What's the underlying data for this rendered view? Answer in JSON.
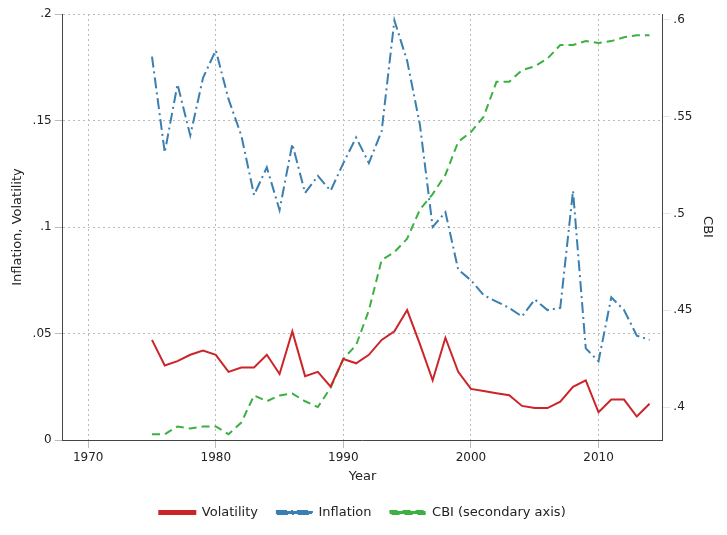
{
  "chart_data": {
    "type": "line",
    "x_label": "Year",
    "y_label": "Inflation, Volatility",
    "y2_label": "CBI",
    "x": [
      1975,
      1976,
      1977,
      1978,
      1979,
      1980,
      1981,
      1982,
      1983,
      1984,
      1985,
      1986,
      1987,
      1988,
      1989,
      1990,
      1991,
      1992,
      1993,
      1994,
      1995,
      1996,
      1997,
      1998,
      1999,
      2000,
      2001,
      2002,
      2003,
      2004,
      2005,
      2006,
      2007,
      2008,
      2009,
      2010,
      2011,
      2012,
      2013,
      2014
    ],
    "xlim": [
      1968,
      2015
    ],
    "xticks": [
      1970,
      1980,
      1990,
      2000,
      2010
    ],
    "ylim": [
      0,
      0.2
    ],
    "yticks": [
      0,
      {
        "value": 0.05,
        "label": ".05"
      },
      {
        "value": 0.1,
        "label": ".1"
      },
      {
        "value": 0.15,
        "label": ".15"
      },
      {
        "value": 0.2,
        "label": ".2"
      }
    ],
    "y2lim": [
      0.383,
      0.603
    ],
    "y2ticks": [
      {
        "value": 0.4,
        "label": ".4"
      },
      {
        "value": 0.45,
        "label": ".45"
      },
      {
        "value": 0.5,
        "label": ".5"
      },
      {
        "value": 0.55,
        "label": ".55"
      },
      {
        "value": 0.6,
        "label": ".6"
      }
    ],
    "grid": true,
    "legend": "bottom",
    "series": [
      {
        "name": "Volatility",
        "color": "#cc2529",
        "line_style": "solid",
        "values": [
          0.047,
          0.035,
          0.037,
          0.04,
          0.042,
          0.04,
          0.032,
          0.034,
          0.034,
          0.04,
          0.031,
          0.051,
          0.03,
          0.032,
          0.025,
          0.038,
          0.036,
          0.04,
          0.047,
          0.051,
          0.061,
          0.045,
          0.028,
          0.048,
          0.032,
          0.024,
          0.023,
          0.022,
          0.021,
          0.016,
          0.015,
          0.015,
          0.018,
          0.025,
          0.028,
          0.013,
          0.019,
          0.019,
          0.011,
          0.017
        ]
      },
      {
        "name": "Inflation",
        "color": "#3a7fb0",
        "line_style": "dashdot",
        "values": [
          0.18,
          0.135,
          0.167,
          0.143,
          0.17,
          0.183,
          0.16,
          0.143,
          0.115,
          0.128,
          0.108,
          0.139,
          0.116,
          0.124,
          0.117,
          0.13,
          0.142,
          0.13,
          0.145,
          0.197,
          0.178,
          0.148,
          0.1,
          0.107,
          0.08,
          0.075,
          0.068,
          0.065,
          0.062,
          0.058,
          0.066,
          0.061,
          0.062,
          0.117,
          0.043,
          0.037,
          0.067,
          0.061,
          0.049,
          0.047
        ]
      },
      {
        "name": "CBI (secondary axis)",
        "color": "#3cb043",
        "line_style": "dashed",
        "axis": "y2",
        "values": [
          0.386,
          0.386,
          0.39,
          0.389,
          0.39,
          0.39,
          0.386,
          0.392,
          0.406,
          0.403,
          0.406,
          0.407,
          0.403,
          0.4,
          0.41,
          0.425,
          0.432,
          0.45,
          0.476,
          0.48,
          0.487,
          0.502,
          0.51,
          0.52,
          0.537,
          0.542,
          0.55,
          0.568,
          0.568,
          0.574,
          0.576,
          0.58,
          0.587,
          0.587,
          0.589,
          0.588,
          0.589,
          0.591,
          0.592,
          0.592
        ]
      }
    ]
  }
}
